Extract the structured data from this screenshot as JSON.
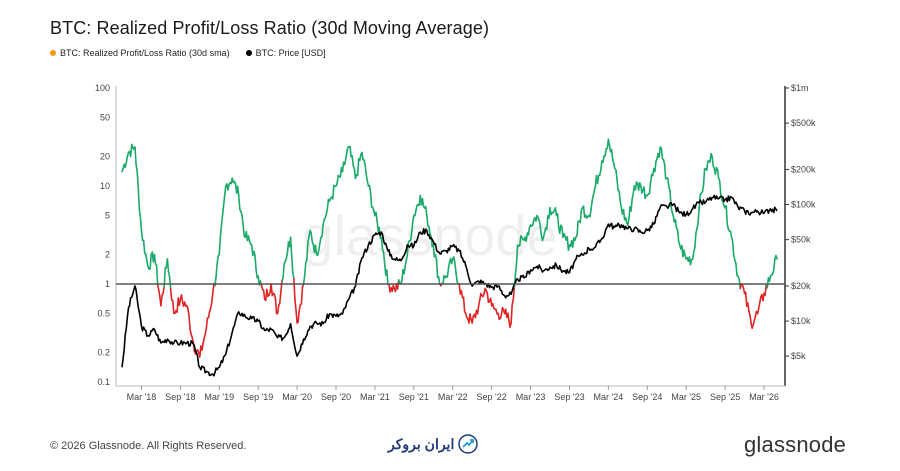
{
  "header": {
    "title": "BTC: Realized Profit/Loss Ratio (30d Moving Average)"
  },
  "footer": {
    "copyright": "© 2026 Glassnode. All Rights Reserved.",
    "partner_logo_text": "ایران بروکر",
    "brand": "glassnode"
  },
  "watermark": "glassnode",
  "colors": {
    "ratio_above": "#1aaa6a",
    "ratio_below": "#e02424",
    "ratio_legend": "#f7931a",
    "price": "#000000",
    "baseline": "#555555"
  },
  "chart_data": {
    "type": "line",
    "title": "BTC: Realized Profit/Loss Ratio (30d Moving Average)",
    "legend_position": "top-left",
    "x_ticks": [
      "Mar '18",
      "Sep '18",
      "Mar '19",
      "Sep '19",
      "Mar '20",
      "Sep '20",
      "Mar '21",
      "Sep '21",
      "Mar '22",
      "Sep '22",
      "Mar '23",
      "Sep '23",
      "Mar '24",
      "Sep '24",
      "Mar '25",
      "Sep '25",
      "Mar '26"
    ],
    "x_range": [
      "2017-12",
      "2026-05"
    ],
    "left_axis": {
      "scale": "log",
      "ticks": [
        100,
        50,
        20,
        10,
        5,
        2,
        1,
        0.5,
        0.2,
        0.1
      ],
      "tick_labels": [
        "100",
        "50",
        "20",
        "10",
        "5",
        "2",
        "1",
        "0.5",
        "0.2",
        "0.1"
      ],
      "ylim": [
        0.1,
        100
      ]
    },
    "right_axis": {
      "scale": "log",
      "ticks": [
        5000,
        10000,
        20000,
        50000,
        100000,
        200000,
        500000,
        1000000
      ],
      "tick_labels": [
        "$5k",
        "$10k",
        "$20k",
        "$50k",
        "$100k",
        "$200k",
        "$500k",
        "$1m"
      ],
      "ylim": [
        3000,
        1000000
      ]
    },
    "reference_line": 1,
    "grid": false,
    "series": [
      {
        "name": "BTC: Realized Profit/Loss Ratio (30d sma)",
        "axis": "left",
        "x": [
          "2017-12",
          "2018-01",
          "2018-02",
          "2018-03",
          "2018-04",
          "2018-05",
          "2018-06",
          "2018-07",
          "2018-08",
          "2018-09",
          "2018-10",
          "2018-11",
          "2018-12",
          "2019-01",
          "2019-02",
          "2019-03",
          "2019-04",
          "2019-05",
          "2019-06",
          "2019-07",
          "2019-08",
          "2019-09",
          "2019-10",
          "2019-11",
          "2019-12",
          "2020-01",
          "2020-02",
          "2020-03",
          "2020-04",
          "2020-05",
          "2020-06",
          "2020-07",
          "2020-08",
          "2020-09",
          "2020-10",
          "2020-11",
          "2020-12",
          "2021-01",
          "2021-02",
          "2021-03",
          "2021-04",
          "2021-05",
          "2021-06",
          "2021-07",
          "2021-08",
          "2021-09",
          "2021-10",
          "2021-11",
          "2021-12",
          "2022-01",
          "2022-02",
          "2022-03",
          "2022-04",
          "2022-05",
          "2022-06",
          "2022-07",
          "2022-08",
          "2022-09",
          "2022-10",
          "2022-11",
          "2022-12",
          "2023-01",
          "2023-02",
          "2023-03",
          "2023-04",
          "2023-05",
          "2023-06",
          "2023-07",
          "2023-08",
          "2023-09",
          "2023-10",
          "2023-11",
          "2023-12",
          "2024-01",
          "2024-02",
          "2024-03",
          "2024-04",
          "2024-05",
          "2024-06",
          "2024-07",
          "2024-08",
          "2024-09",
          "2024-10",
          "2024-11",
          "2024-12",
          "2025-01",
          "2025-02",
          "2025-03",
          "2025-04",
          "2025-05",
          "2025-06",
          "2025-07",
          "2025-08",
          "2025-09",
          "2025-10",
          "2025-11",
          "2025-12",
          "2026-01",
          "2026-02",
          "2026-03",
          "2026-04",
          "2026-05"
        ],
        "values": [
          14,
          22,
          25,
          3.5,
          1.5,
          2.0,
          0.6,
          1.8,
          0.5,
          0.7,
          0.6,
          0.25,
          0.18,
          0.35,
          0.8,
          2.0,
          10,
          12,
          8,
          3,
          2.5,
          1.2,
          0.7,
          1.0,
          0.5,
          1.6,
          3.0,
          0.4,
          1.0,
          3.5,
          2.0,
          4.0,
          7,
          10,
          14,
          25,
          12,
          22,
          10,
          5,
          3,
          1.0,
          0.9,
          1.0,
          2.0,
          5,
          8,
          5,
          2.5,
          1.0,
          1.2,
          1.8,
          1.0,
          0.5,
          0.4,
          0.6,
          0.9,
          0.6,
          0.5,
          0.5,
          0.4,
          2.5,
          2.8,
          4.0,
          5,
          3,
          6,
          5,
          3,
          2.5,
          3.0,
          6,
          5,
          10,
          18,
          30,
          15,
          6,
          4,
          10,
          10,
          8,
          15,
          25,
          12,
          5,
          2.5,
          1.8,
          1.8,
          6,
          15,
          20,
          12,
          6,
          3,
          1.2,
          0.8,
          0.4,
          0.5,
          0.8,
          1.2,
          1.8
        ]
      },
      {
        "name": "BTC: Price [USD]",
        "axis": "right",
        "x": [
          "2017-12",
          "2018-01",
          "2018-02",
          "2018-03",
          "2018-04",
          "2018-05",
          "2018-06",
          "2018-07",
          "2018-08",
          "2018-09",
          "2018-10",
          "2018-11",
          "2018-12",
          "2019-01",
          "2019-02",
          "2019-03",
          "2019-04",
          "2019-05",
          "2019-06",
          "2019-07",
          "2019-08",
          "2019-09",
          "2019-10",
          "2019-11",
          "2019-12",
          "2020-01",
          "2020-02",
          "2020-03",
          "2020-04",
          "2020-05",
          "2020-06",
          "2020-07",
          "2020-08",
          "2020-09",
          "2020-10",
          "2020-11",
          "2020-12",
          "2021-01",
          "2021-02",
          "2021-03",
          "2021-04",
          "2021-05",
          "2021-06",
          "2021-07",
          "2021-08",
          "2021-09",
          "2021-10",
          "2021-11",
          "2021-12",
          "2022-01",
          "2022-02",
          "2022-03",
          "2022-04",
          "2022-05",
          "2022-06",
          "2022-07",
          "2022-08",
          "2022-09",
          "2022-10",
          "2022-11",
          "2022-12",
          "2023-01",
          "2023-02",
          "2023-03",
          "2023-04",
          "2023-05",
          "2023-06",
          "2023-07",
          "2023-08",
          "2023-09",
          "2023-10",
          "2023-11",
          "2023-12",
          "2024-01",
          "2024-02",
          "2024-03",
          "2024-04",
          "2024-05",
          "2024-06",
          "2024-07",
          "2024-08",
          "2024-09",
          "2024-10",
          "2024-11",
          "2024-12",
          "2025-01",
          "2025-02",
          "2025-03",
          "2025-04",
          "2025-05",
          "2025-06",
          "2025-07",
          "2025-08",
          "2025-09",
          "2025-10",
          "2025-11",
          "2025-12",
          "2026-01",
          "2026-02",
          "2026-03",
          "2026-04",
          "2026-05"
        ],
        "values": [
          4000,
          13000,
          20000,
          9000,
          7500,
          8500,
          6500,
          7000,
          6500,
          6500,
          6500,
          6400,
          4000,
          3700,
          3500,
          4000,
          5200,
          8000,
          12000,
          11000,
          10500,
          10000,
          8300,
          8500,
          7200,
          7200,
          9500,
          5000,
          7000,
          9000,
          9600,
          9500,
          11500,
          11000,
          11500,
          15500,
          20000,
          35000,
          45000,
          55000,
          58000,
          40000,
          34000,
          33000,
          45000,
          44000,
          58000,
          60000,
          48000,
          38000,
          40000,
          44000,
          40000,
          30000,
          20000,
          22000,
          21000,
          19500,
          20000,
          16500,
          17000,
          23000,
          23500,
          27500,
          29500,
          27000,
          29000,
          30000,
          27000,
          26000,
          34000,
          37000,
          42000,
          43000,
          51000,
          68000,
          64000,
          67000,
          62000,
          62000,
          58000,
          60000,
          68000,
          95000,
          96000,
          100000,
          85000,
          82000,
          92000,
          103000,
          105000,
          115000,
          112000,
          110000,
          115000,
          95000,
          88000,
          85000,
          88000,
          84000,
          92000,
          88000
        ]
      }
    ]
  },
  "legend": [
    {
      "label": "BTC: Realized Profit/Loss Ratio (30d sma)",
      "color": "#f7931a"
    },
    {
      "label": "BTC: Price [USD]",
      "color": "#000000"
    }
  ]
}
